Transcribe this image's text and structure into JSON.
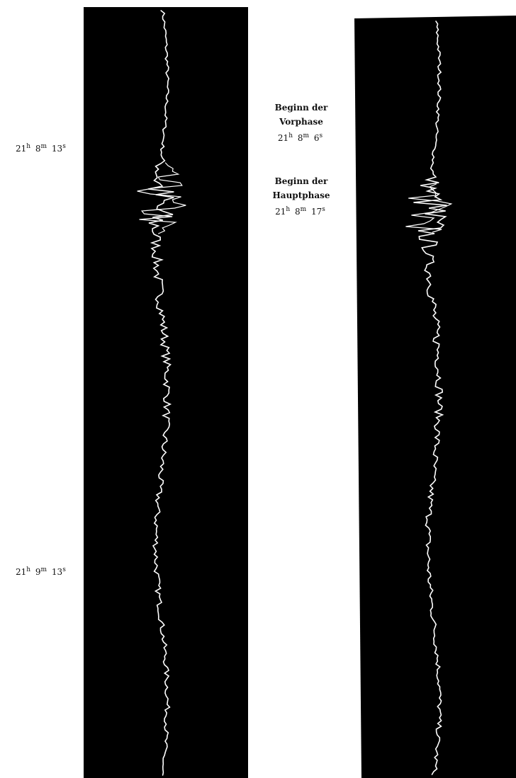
{
  "figure": {
    "left_strip": {
      "time_labels": [
        {
          "hours": "21",
          "hours_unit": "h",
          "minutes": "8",
          "minutes_unit": "m",
          "seconds": "13",
          "seconds_unit": "s"
        },
        {
          "hours": "21",
          "hours_unit": "h",
          "minutes": "9",
          "minutes_unit": "m",
          "seconds": "13",
          "seconds_unit": "s"
        }
      ]
    },
    "phase_labels": [
      {
        "line1": "Beginn der",
        "line2": "Vorphase",
        "time": {
          "hours": "21",
          "hours_unit": "h",
          "minutes": "8",
          "minutes_unit": "m",
          "seconds": "6",
          "seconds_unit": "s"
        }
      },
      {
        "line1": "Beginn der",
        "line2": "Hauptphase",
        "time": {
          "hours": "21",
          "hours_unit": "h",
          "minutes": "8",
          "minutes_unit": "m",
          "seconds": "17",
          "seconds_unit": "s"
        }
      }
    ]
  }
}
